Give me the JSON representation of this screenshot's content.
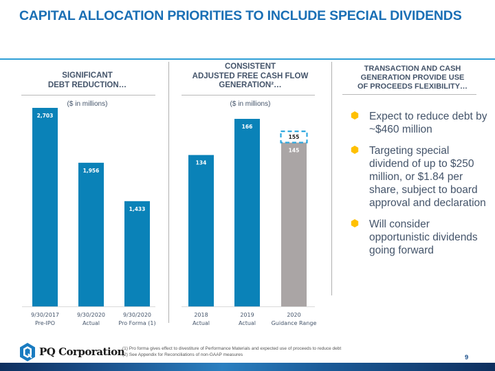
{
  "slide": {
    "title": "CAPITAL ALLOCATION PRIORITIES TO INCLUDE SPECIAL DIVIDENDS",
    "page_number": "9",
    "colors": {
      "title": "#1a6fb5",
      "bar_blue": "#0a82b8",
      "bar_gray": "#aaa5a5",
      "dashed_box": "#2ea8df",
      "bullet": "#ffc000"
    }
  },
  "columns": {
    "left_heading": [
      "SIGNIFICANT",
      "DEBT REDUCTION…"
    ],
    "middle_heading": [
      "CONSISTENT",
      "ADJUSTED FREE CASH FLOW",
      "GENERATION²…"
    ],
    "right_heading": [
      "TRANSACTION AND CASH",
      "GENERATION PROVIDE USE",
      "OF PROCEEDS FLEXIBILITY…"
    ]
  },
  "chart_data": [
    {
      "type": "bar",
      "title": "SIGNIFICANT DEBT REDUCTION…",
      "subtitle": "($ in millions)",
      "categories": [
        [
          "9/30/2017",
          "Pre-IPO"
        ],
        [
          "9/30/2020",
          "Actual"
        ],
        [
          "9/30/2020",
          "Pro Forma (1)"
        ]
      ],
      "values": [
        2703,
        1956,
        1433
      ],
      "labels": [
        "2,703",
        "1,956",
        "1,433"
      ],
      "ylim": [
        0,
        2703
      ],
      "grid": false,
      "xlabel": "",
      "ylabel": ""
    },
    {
      "type": "bar",
      "title": "CONSISTENT ADJUSTED FREE CASH FLOW GENERATION²…",
      "subtitle": "($ in millions)",
      "categories": [
        [
          "2018",
          "Actual"
        ],
        [
          "2019",
          "Actual"
        ],
        [
          "2020",
          "Guidance Range"
        ]
      ],
      "values": [
        134,
        166,
        145
      ],
      "labels": [
        "134",
        "166",
        "145"
      ],
      "range_high": {
        "category_index": 2,
        "value": 155,
        "label": "155"
      },
      "ylim": [
        0,
        166
      ],
      "grid": false,
      "xlabel": "",
      "ylabel": ""
    }
  ],
  "bullets": [
    "Expect to reduce debt by ~$460 million",
    "Targeting special dividend of up to $250 million, or $1.84 per share, subject to board approval and declaration",
    "Will consider opportunistic dividends going forward"
  ],
  "footer": {
    "logo_text": "PQ Corporation",
    "footnotes": [
      "(1)  Pro forma gives effect to divestiture of Performance Materials and expected use of proceeds to reduce debt",
      "(2)  See Appendix for Reconciliations of non-GAAP measures"
    ]
  }
}
